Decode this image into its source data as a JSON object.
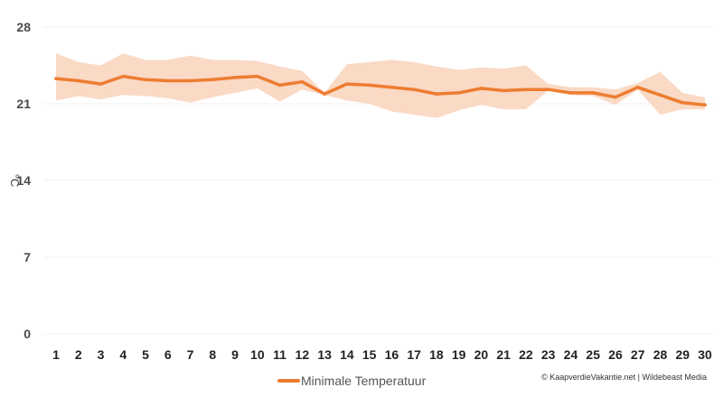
{
  "chart_data": {
    "type": "line",
    "ylabel": "°C",
    "ylim": [
      0,
      28
    ],
    "yticks": [
      "0",
      "7",
      "14",
      "21",
      "28"
    ],
    "x": [
      "1",
      "2",
      "3",
      "4",
      "5",
      "6",
      "7",
      "8",
      "9",
      "10",
      "11",
      "12",
      "13",
      "14",
      "15",
      "16",
      "17",
      "18",
      "19",
      "20",
      "21",
      "22",
      "23",
      "24",
      "25",
      "26",
      "27",
      "28",
      "29",
      "30"
    ],
    "series": [
      {
        "name": "Minimale Temperatuur",
        "color": "#ed7d31",
        "values": [
          23.3,
          23.1,
          22.8,
          23.5,
          23.2,
          23.1,
          23.1,
          23.2,
          23.4,
          23.5,
          22.7,
          23.0,
          21.9,
          22.8,
          22.7,
          22.5,
          22.3,
          21.9,
          22.0,
          22.4,
          22.2,
          22.3,
          22.3,
          22.0,
          22.0,
          21.6,
          22.5,
          21.8,
          21.1,
          20.9
        ],
        "upper": [
          25.6,
          24.8,
          24.5,
          25.6,
          25.0,
          25.0,
          25.4,
          25.0,
          25.0,
          24.9,
          24.4,
          24.0,
          22.0,
          24.6,
          24.8,
          25.0,
          24.8,
          24.4,
          24.1,
          24.3,
          24.2,
          24.5,
          22.8,
          22.5,
          22.5,
          22.3,
          22.9,
          23.9,
          22.0,
          21.6
        ],
        "lower": [
          21.3,
          21.7,
          21.4,
          21.8,
          21.7,
          21.5,
          21.1,
          21.6,
          22.0,
          22.4,
          21.2,
          22.3,
          21.8,
          21.3,
          21.0,
          20.3,
          20.0,
          19.7,
          20.4,
          20.9,
          20.5,
          20.5,
          22.2,
          21.8,
          21.7,
          20.9,
          22.3,
          20.0,
          20.5,
          20.5
        ]
      }
    ],
    "band_color": "#fad9c5",
    "legend_position": "bottom-left",
    "credit": "© KaapverdieVakantie.net | Wildebeast Media"
  }
}
